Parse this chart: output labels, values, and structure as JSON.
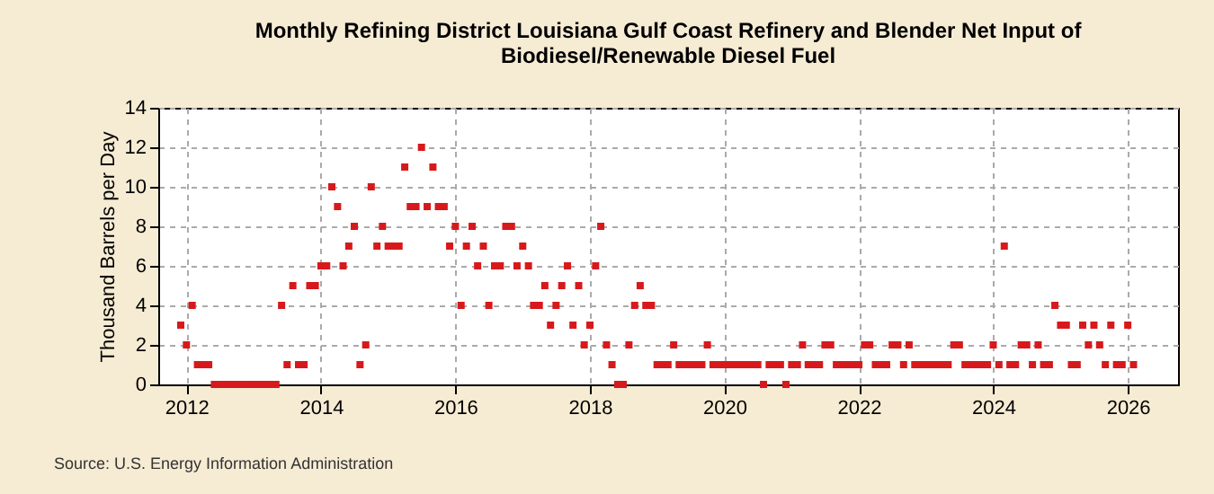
{
  "chart_data": {
    "type": "scatter",
    "title": "Monthly Refining District Louisiana Gulf Coast Refinery and Blender Net Input of\nBiodiesel/Renewable Diesel Fuel",
    "ylabel": "Thousand Barrels per Day",
    "annotations": [
      "Source: U.S. Energy Information Administration"
    ],
    "x": [
      "2011-12",
      "2012-01",
      "2012-02",
      "2012-03",
      "2012-04",
      "2012-05",
      "2012-06",
      "2012-07",
      "2012-08",
      "2012-09",
      "2012-10",
      "2012-11",
      "2012-12",
      "2013-01",
      "2013-02",
      "2013-03",
      "2013-04",
      "2013-05",
      "2013-06",
      "2013-07",
      "2013-08",
      "2013-09",
      "2013-10",
      "2013-11",
      "2013-12",
      "2014-01",
      "2014-02",
      "2014-03",
      "2014-04",
      "2014-05",
      "2014-06",
      "2014-07",
      "2014-08",
      "2014-09",
      "2014-10",
      "2014-11",
      "2014-12",
      "2015-01",
      "2015-02",
      "2015-03",
      "2015-04",
      "2015-05",
      "2015-06",
      "2015-07",
      "2015-08",
      "2015-09",
      "2015-10",
      "2015-11",
      "2015-12",
      "2016-01",
      "2016-02",
      "2016-03",
      "2016-04",
      "2016-05",
      "2016-06",
      "2016-07",
      "2016-08",
      "2016-09",
      "2016-10",
      "2016-11",
      "2016-12",
      "2017-01",
      "2017-02",
      "2017-03",
      "2017-04",
      "2017-05",
      "2017-06",
      "2017-07",
      "2017-08",
      "2017-09",
      "2017-10",
      "2017-11",
      "2017-12",
      "2018-01",
      "2018-02",
      "2018-03",
      "2018-04",
      "2018-05",
      "2018-06",
      "2018-07",
      "2018-08",
      "2018-09",
      "2018-10",
      "2018-11",
      "2018-12",
      "2019-01",
      "2019-02",
      "2019-03",
      "2019-04",
      "2019-05",
      "2019-06",
      "2019-07",
      "2019-08",
      "2019-09",
      "2019-10",
      "2019-11",
      "2019-12",
      "2020-01",
      "2020-02",
      "2020-03",
      "2020-04",
      "2020-05",
      "2020-06",
      "2020-07",
      "2020-08",
      "2020-09",
      "2020-10",
      "2020-11",
      "2020-12",
      "2021-01",
      "2021-02",
      "2021-03",
      "2021-04",
      "2021-05",
      "2021-06",
      "2021-07",
      "2021-08",
      "2021-09",
      "2021-10",
      "2021-11",
      "2021-12",
      "2022-01",
      "2022-02",
      "2022-03",
      "2022-04",
      "2022-05",
      "2022-06",
      "2022-07",
      "2022-08",
      "2022-09",
      "2022-10",
      "2022-11",
      "2022-12",
      "2023-01",
      "2023-02",
      "2023-03",
      "2023-04",
      "2023-05",
      "2023-06",
      "2023-07",
      "2023-08",
      "2023-09",
      "2023-10",
      "2023-11",
      "2023-12",
      "2024-01",
      "2024-02",
      "2024-03",
      "2024-04",
      "2024-05",
      "2024-06",
      "2024-07",
      "2024-08",
      "2024-09",
      "2024-10",
      "2024-11",
      "2024-12",
      "2025-01",
      "2025-02",
      "2025-03",
      "2025-04",
      "2025-05",
      "2025-06",
      "2025-07",
      "2025-08",
      "2025-09",
      "2025-10",
      "2025-11",
      "2025-12",
      "2026-01",
      "2026-02"
    ],
    "series": [
      {
        "color": "#d7191c",
        "values": [
          3,
          2,
          4,
          1,
          1,
          1,
          0,
          0,
          0,
          0,
          0,
          0,
          0,
          0,
          0,
          0,
          0,
          0,
          4,
          1,
          5,
          1,
          1,
          5,
          5,
          6,
          6,
          10,
          9,
          6,
          7,
          8,
          1,
          2,
          10,
          7,
          8,
          7,
          7,
          7,
          11,
          9,
          9,
          12,
          9,
          11,
          9,
          9,
          7,
          8,
          4,
          7,
          8,
          6,
          7,
          4,
          6,
          6,
          8,
          8,
          6,
          7,
          6,
          4,
          4,
          5,
          3,
          4,
          5,
          6,
          3,
          5,
          2,
          3,
          6,
          8,
          2,
          1,
          0,
          0,
          2,
          4,
          5,
          4,
          4,
          1,
          1,
          1,
          2,
          1,
          1,
          1,
          1,
          1,
          2,
          1,
          1,
          1,
          1,
          1,
          1,
          1,
          1,
          1,
          0,
          1,
          1,
          1,
          0,
          1,
          1,
          2,
          1,
          1,
          1,
          2,
          2,
          1,
          1,
          1,
          1,
          1,
          2,
          2,
          1,
          1,
          1,
          2,
          2,
          1,
          2,
          1,
          1,
          1,
          1,
          1,
          1,
          1,
          2,
          2,
          1,
          1,
          1,
          1,
          1,
          2,
          1,
          7,
          1,
          1,
          2,
          2,
          1,
          2,
          1,
          1,
          4,
          3,
          3,
          1,
          1,
          3,
          2,
          3,
          2,
          1,
          3,
          1,
          1,
          3,
          1
        ]
      }
    ],
    "xlim": [
      "2011-08",
      "2026-10"
    ],
    "xticks": [
      {
        "value": "2012",
        "label": "2012"
      },
      {
        "value": "2014",
        "label": "2014"
      },
      {
        "value": "2016",
        "label": "2016"
      },
      {
        "value": "2018",
        "label": "2018"
      },
      {
        "value": "2020",
        "label": "2020"
      },
      {
        "value": "2022",
        "label": "2022"
      },
      {
        "value": "2024",
        "label": "2024"
      },
      {
        "value": "2026",
        "label": "2026"
      }
    ],
    "ylim": [
      0,
      14
    ],
    "yticks": [
      0,
      2,
      4,
      6,
      8,
      10,
      12,
      14
    ],
    "grid": true,
    "marker": "square",
    "legend": false
  }
}
